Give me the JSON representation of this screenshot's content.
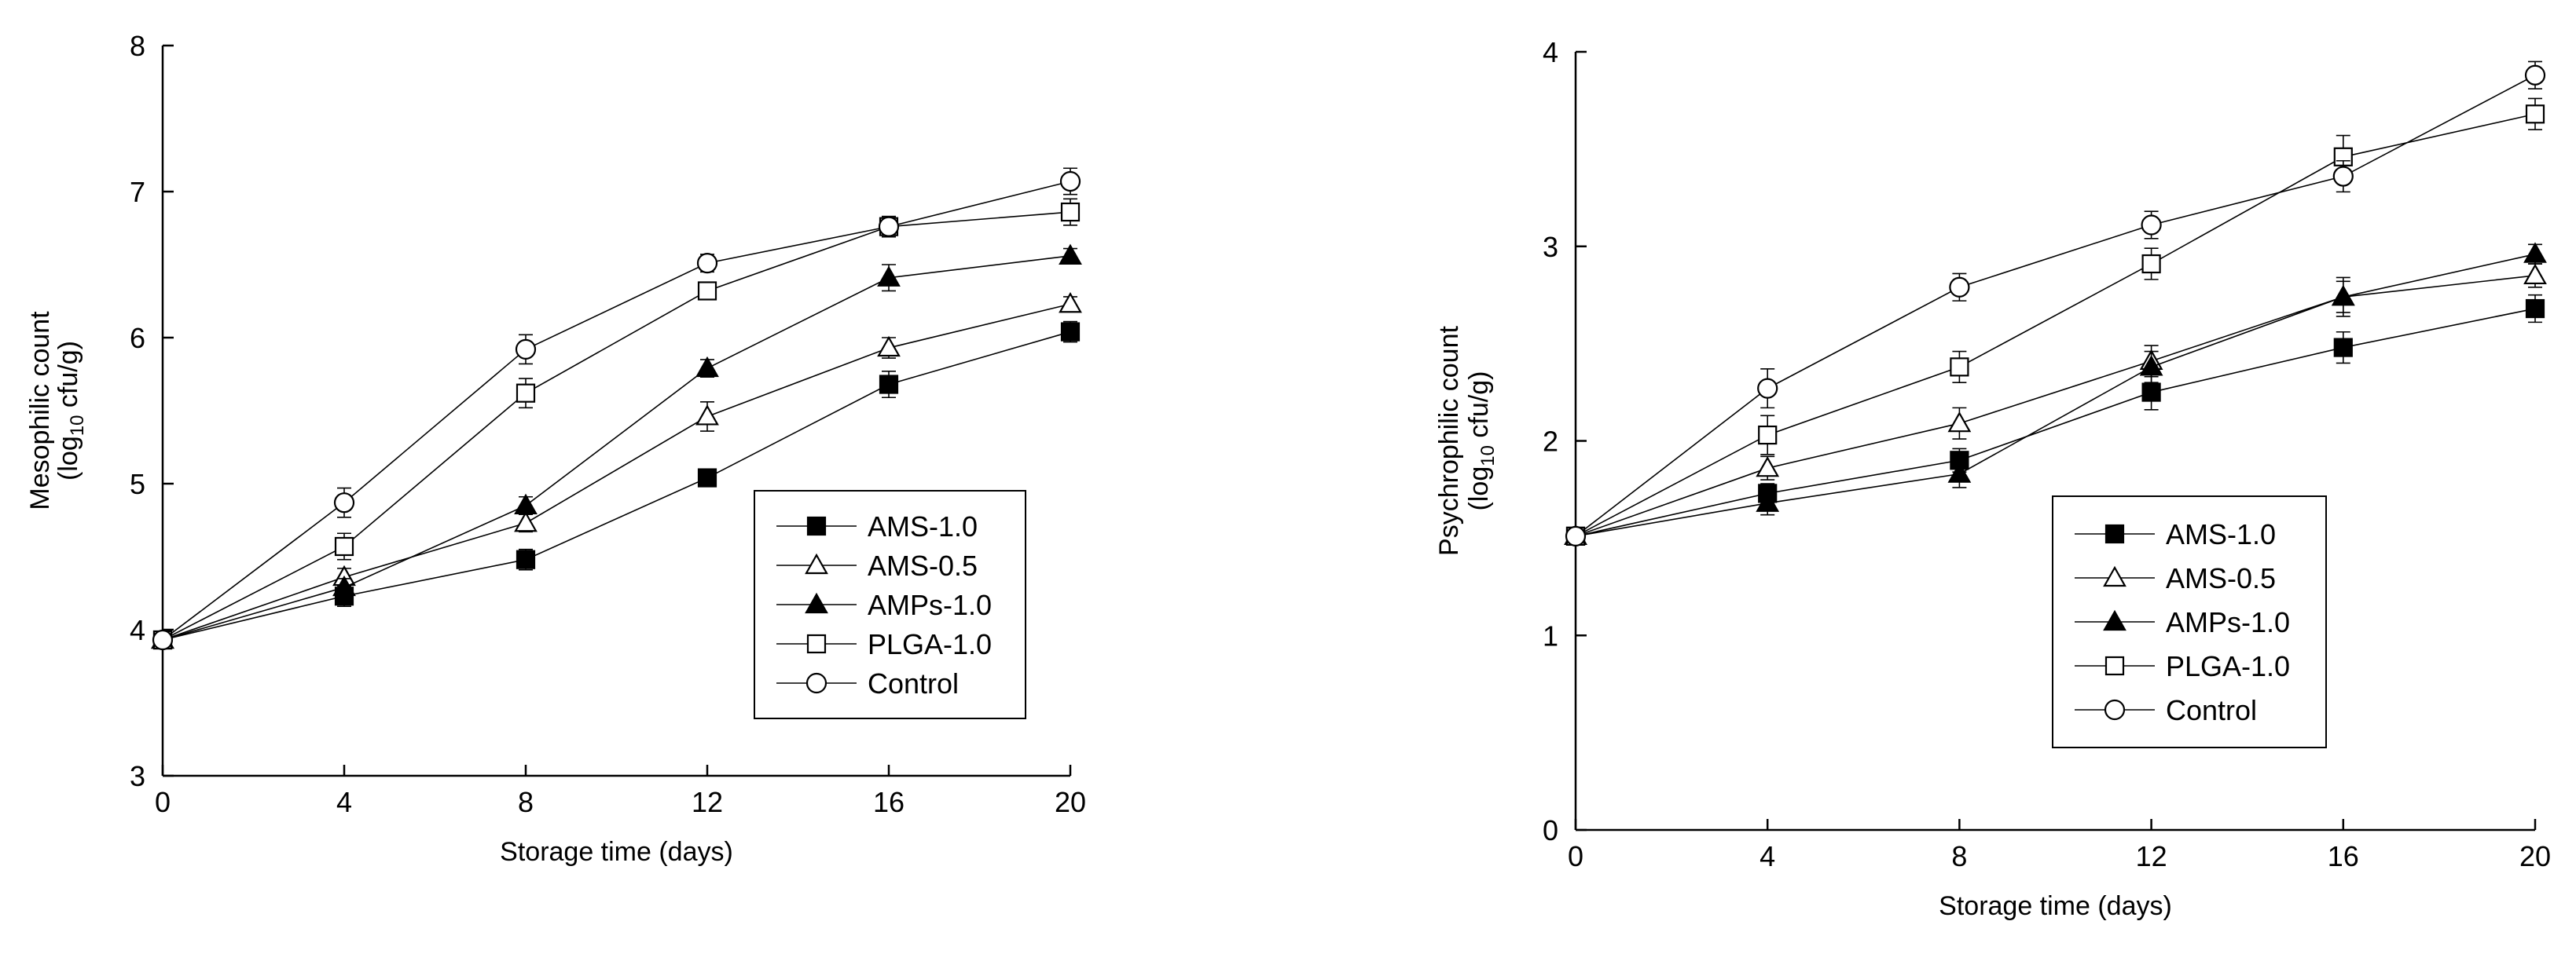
{
  "chart_data": [
    {
      "type": "line",
      "id": "left",
      "xlabel": "Storage time (days)",
      "ylabel_line1": "Mesophilic count",
      "ylabel_line2_pre": "(log",
      "ylabel_line2_sub": "10",
      "ylabel_line2_post": " cfu/g)",
      "xlim": [
        0,
        20
      ],
      "ylim": [
        3,
        8
      ],
      "xticks": [
        0,
        4,
        8,
        12,
        16,
        20
      ],
      "yticks": [
        3,
        4,
        5,
        6,
        7,
        8
      ],
      "legend_position": "lower-right",
      "x": [
        0,
        4,
        8,
        12,
        16,
        20
      ],
      "series": [
        {
          "name": "AMS-1.0",
          "marker": "square-filled",
          "values": [
            3.93,
            4.23,
            4.48,
            5.04,
            5.68,
            6.04
          ],
          "errors": [
            0.06,
            0.07,
            0.07,
            0.05,
            0.09,
            0.07
          ]
        },
        {
          "name": "AMS-0.5",
          "marker": "triangle-open",
          "values": [
            3.93,
            4.36,
            4.73,
            5.46,
            5.93,
            6.23
          ],
          "errors": [
            0.06,
            0.06,
            0.06,
            0.1,
            0.07,
            0.05
          ]
        },
        {
          "name": "AMPs-1.0",
          "marker": "triangle-filled",
          "values": [
            3.93,
            4.29,
            4.85,
            5.79,
            6.41,
            6.56
          ],
          "errors": [
            0.06,
            0.06,
            0.06,
            0.06,
            0.09,
            0.05
          ]
        },
        {
          "name": "PLGA-1.0",
          "marker": "square-open",
          "values": [
            3.93,
            4.57,
            5.62,
            6.32,
            6.76,
            6.86
          ],
          "errors": [
            0.06,
            0.09,
            0.1,
            0.06,
            0.07,
            0.09
          ]
        },
        {
          "name": "Control",
          "marker": "circle-open",
          "values": [
            3.93,
            4.87,
            5.92,
            6.51,
            6.76,
            7.07
          ],
          "errors": [
            0.06,
            0.1,
            0.1,
            0.06,
            0.07,
            0.09
          ]
        }
      ]
    },
    {
      "type": "line",
      "id": "right",
      "xlabel": "Storage time (days)",
      "ylabel_line1": "Psychrophilic count",
      "ylabel_line2_pre": "(log",
      "ylabel_line2_sub": "10",
      "ylabel_line2_post": " cfu/g)",
      "xlim": [
        0,
        20
      ],
      "ylim": [
        0,
        4
      ],
      "xticks": [
        0,
        4,
        8,
        12,
        16,
        20
      ],
      "yticks": [
        0,
        1,
        2,
        3,
        4
      ],
      "legend_position": "lower-center",
      "x": [
        0,
        4,
        8,
        12,
        16,
        20
      ],
      "series": [
        {
          "name": "AMS-1.0",
          "marker": "square-filled",
          "values": [
            1.51,
            1.73,
            1.9,
            2.25,
            2.48,
            2.68
          ],
          "errors": [
            0.03,
            0.05,
            0.06,
            0.09,
            0.08,
            0.07
          ]
        },
        {
          "name": "AMS-0.5",
          "marker": "triangle-open",
          "values": [
            1.51,
            1.86,
            2.09,
            2.41,
            2.74,
            2.85
          ],
          "errors": [
            0.03,
            0.06,
            0.08,
            0.08,
            0.08,
            0.06
          ]
        },
        {
          "name": "AMPs-1.0",
          "marker": "triangle-filled",
          "values": [
            1.51,
            1.68,
            1.83,
            2.38,
            2.74,
            2.96
          ],
          "errors": [
            0.03,
            0.06,
            0.07,
            0.08,
            0.1,
            0.05
          ]
        },
        {
          "name": "PLGA-1.0",
          "marker": "square-open",
          "values": [
            1.51,
            2.03,
            2.38,
            2.91,
            3.46,
            3.68
          ],
          "errors": [
            0.03,
            0.1,
            0.08,
            0.08,
            0.11,
            0.08
          ]
        },
        {
          "name": "Control",
          "marker": "circle-open",
          "values": [
            1.51,
            2.27,
            2.79,
            3.11,
            3.36,
            3.88
          ],
          "errors": [
            0.03,
            0.1,
            0.07,
            0.07,
            0.08,
            0.07
          ]
        }
      ]
    }
  ]
}
